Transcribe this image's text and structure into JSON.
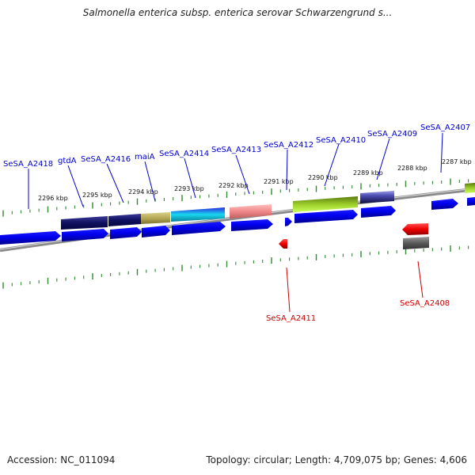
{
  "title": "Salmonella enterica subsp. enterica serovar Schwarzengrund s...",
  "footer": {
    "accession": "Accession: NC_011094",
    "topology": "Topology: circular; Length: 4,709,075 bp; Genes: 4,606"
  },
  "colors": {
    "label_plus": "#0000cc",
    "label_minus": "#cc0000",
    "tick": "#2e8b2e",
    "backbone": "#777777",
    "cds_plus": "#0000ee",
    "cds_minus": "#ee0000"
  },
  "kbp_labels": [
    "2296 kbp",
    "2295 kbp",
    "2294 kbp",
    "2293 kbp",
    "2292 kbp",
    "2291 kbp",
    "2290 kbp",
    "2289 kbp",
    "2288 kbp",
    "2287 kbp"
  ],
  "gene_labels_top": [
    "SeSA_A2418",
    "gtdA",
    "SeSA_A2416",
    "maiA",
    "SeSA_A2414",
    "SeSA_A2413",
    "SeSA_A2412",
    "SeSA_A2410",
    "SeSA_A2409",
    "SeSA_A2407"
  ],
  "gene_labels_bottom": [
    "SeSA_A2411",
    "SeSA_A2408"
  ]
}
